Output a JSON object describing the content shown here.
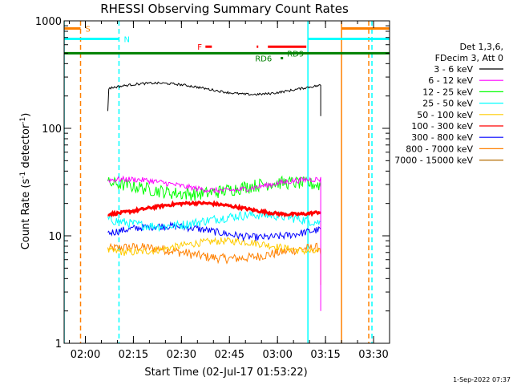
{
  "chart_data": {
    "type": "line",
    "title": "RHESSI Observing Summary Count Rates",
    "xlabel": "Start Time (02-Jul-17 01:53:22)",
    "ylabel_main": "Count Rate (s",
    "ylabel_sup1": "-1",
    "ylabel_mid": " detector",
    "ylabel_sup2": "-1",
    "ylabel_end": ")",
    "footer": "1-Sep-2022 07:37",
    "y_scale": "log",
    "ylim": [
      1,
      1000
    ],
    "xlim": [
      "01:53:22",
      "03:35:00"
    ],
    "x_ticks": [
      "02:00",
      "02:15",
      "02:30",
      "02:45",
      "03:00",
      "03:15",
      "03:30"
    ],
    "y_ticks": [
      "1",
      "10",
      "100",
      "1000"
    ],
    "legend": {
      "header": [
        "Det 1,3,6,",
        "FDecim 3, Att 0"
      ],
      "entries": [
        {
          "label": "3 - 6 keV",
          "color": "#000000"
        },
        {
          "label": "6 - 12 keV",
          "color": "#ff00ff"
        },
        {
          "label": "12 - 25 keV",
          "color": "#00ff00"
        },
        {
          "label": "25 - 50 keV",
          "color": "#00ffff"
        },
        {
          "label": "50 - 100 keV",
          "color": "#ffcc00"
        },
        {
          "label": "100 - 300 keV",
          "color": "#ff0000"
        },
        {
          "label": "300 - 800 keV",
          "color": "#0000ff"
        },
        {
          "label": "800 - 7000 keV",
          "color": "#ff8000"
        },
        {
          "label": "7000 - 15000 keV",
          "color": "#b36b00"
        }
      ]
    },
    "series": [
      {
        "name": "3 - 6 keV",
        "color": "#000000",
        "mean": 235,
        "noise": 0.025,
        "start": "02:07:00",
        "end": "03:13:30",
        "start_value": 145,
        "end_value": 130
      },
      {
        "name": "6 - 12 keV",
        "color": "#ff00ff",
        "mean": 30,
        "noise": 0.06,
        "start": "02:07:00",
        "end": "03:13:30",
        "end_value": 2
      },
      {
        "name": "12 - 25 keV",
        "color": "#00ff00",
        "mean": 28,
        "noise": 0.14,
        "start": "02:07:00",
        "end": "03:13:30"
      },
      {
        "name": "25 - 50 keV",
        "color": "#00ffff",
        "mean": 14,
        "noise": 0.1,
        "start": "02:07:00",
        "end": "03:13:30"
      },
      {
        "name": "50 - 100 keV",
        "color": "#ffcc00",
        "mean": 8,
        "noise": 0.08,
        "start": "02:07:00",
        "end": "03:13:30"
      },
      {
        "name": "100 - 300 keV",
        "color": "#ff0000",
        "mean": 18,
        "noise": 0.03,
        "start": "02:07:00",
        "end": "03:13:30"
      },
      {
        "name": "300 - 800 keV",
        "color": "#0000ff",
        "mean": 11,
        "noise": 0.08,
        "start": "02:07:00",
        "end": "03:13:30"
      },
      {
        "name": "800 - 7000 keV",
        "color": "#ff8000",
        "mean": 7,
        "noise": 0.1,
        "start": "02:07:00",
        "end": "03:13:30",
        "end_value": 3.5
      }
    ],
    "flags": [
      {
        "label": "S",
        "color": "#ff8000",
        "y": 850,
        "x_start": "01:53:22",
        "x_end": "01:58:30"
      },
      {
        "label": "N",
        "color": "#00ffff",
        "y": 680,
        "x_start": "01:53:22",
        "x_end": "02:10:30"
      },
      {
        "label": "",
        "color": "#00ffff",
        "y": 680,
        "x_start": "03:09:30",
        "x_end": "03:35:00"
      },
      {
        "label": "",
        "color": "#ff8000",
        "y": 850,
        "x_start": "03:20:00",
        "x_end": "03:35:00"
      },
      {
        "label": "",
        "color": "#008000",
        "y": 500,
        "x_start": "01:53:22",
        "x_end": "03:35:00"
      },
      {
        "label": "F",
        "color": "#ff0000",
        "y": 575,
        "x_start": "02:37:30",
        "x_end": "02:39:30"
      },
      {
        "label": "",
        "color": "#ff0000",
        "y": 575,
        "x_start": "02:53:30",
        "x_end": "02:54:00"
      },
      {
        "label": "",
        "color": "#ff0000",
        "y": 575,
        "x_start": "02:57:00",
        "x_end": "03:09:00"
      }
    ],
    "flag_labels": [
      {
        "label": "RD9",
        "x": "03:03:00",
        "y": 500,
        "color": "#008000"
      },
      {
        "label": "RD6",
        "x": "02:53:00",
        "y": 450,
        "color": "#008000"
      }
    ],
    "vertical_lines": [
      {
        "x": "01:58:30",
        "color": "#ff8000",
        "style": "dashed"
      },
      {
        "x": "02:10:30",
        "color": "#00ffff",
        "style": "dashed"
      },
      {
        "x": "03:09:30",
        "color": "#00ffff",
        "style": "solid"
      },
      {
        "x": "03:20:00",
        "color": "#ff8000",
        "style": "solid"
      },
      {
        "x": "03:29:30",
        "color": "#00ffff",
        "style": "dashed"
      },
      {
        "x": "03:28:30",
        "color": "#ff8000",
        "style": "dashed"
      },
      {
        "x": "01:53:22",
        "color": "#00ffff",
        "style": "solid"
      }
    ]
  }
}
